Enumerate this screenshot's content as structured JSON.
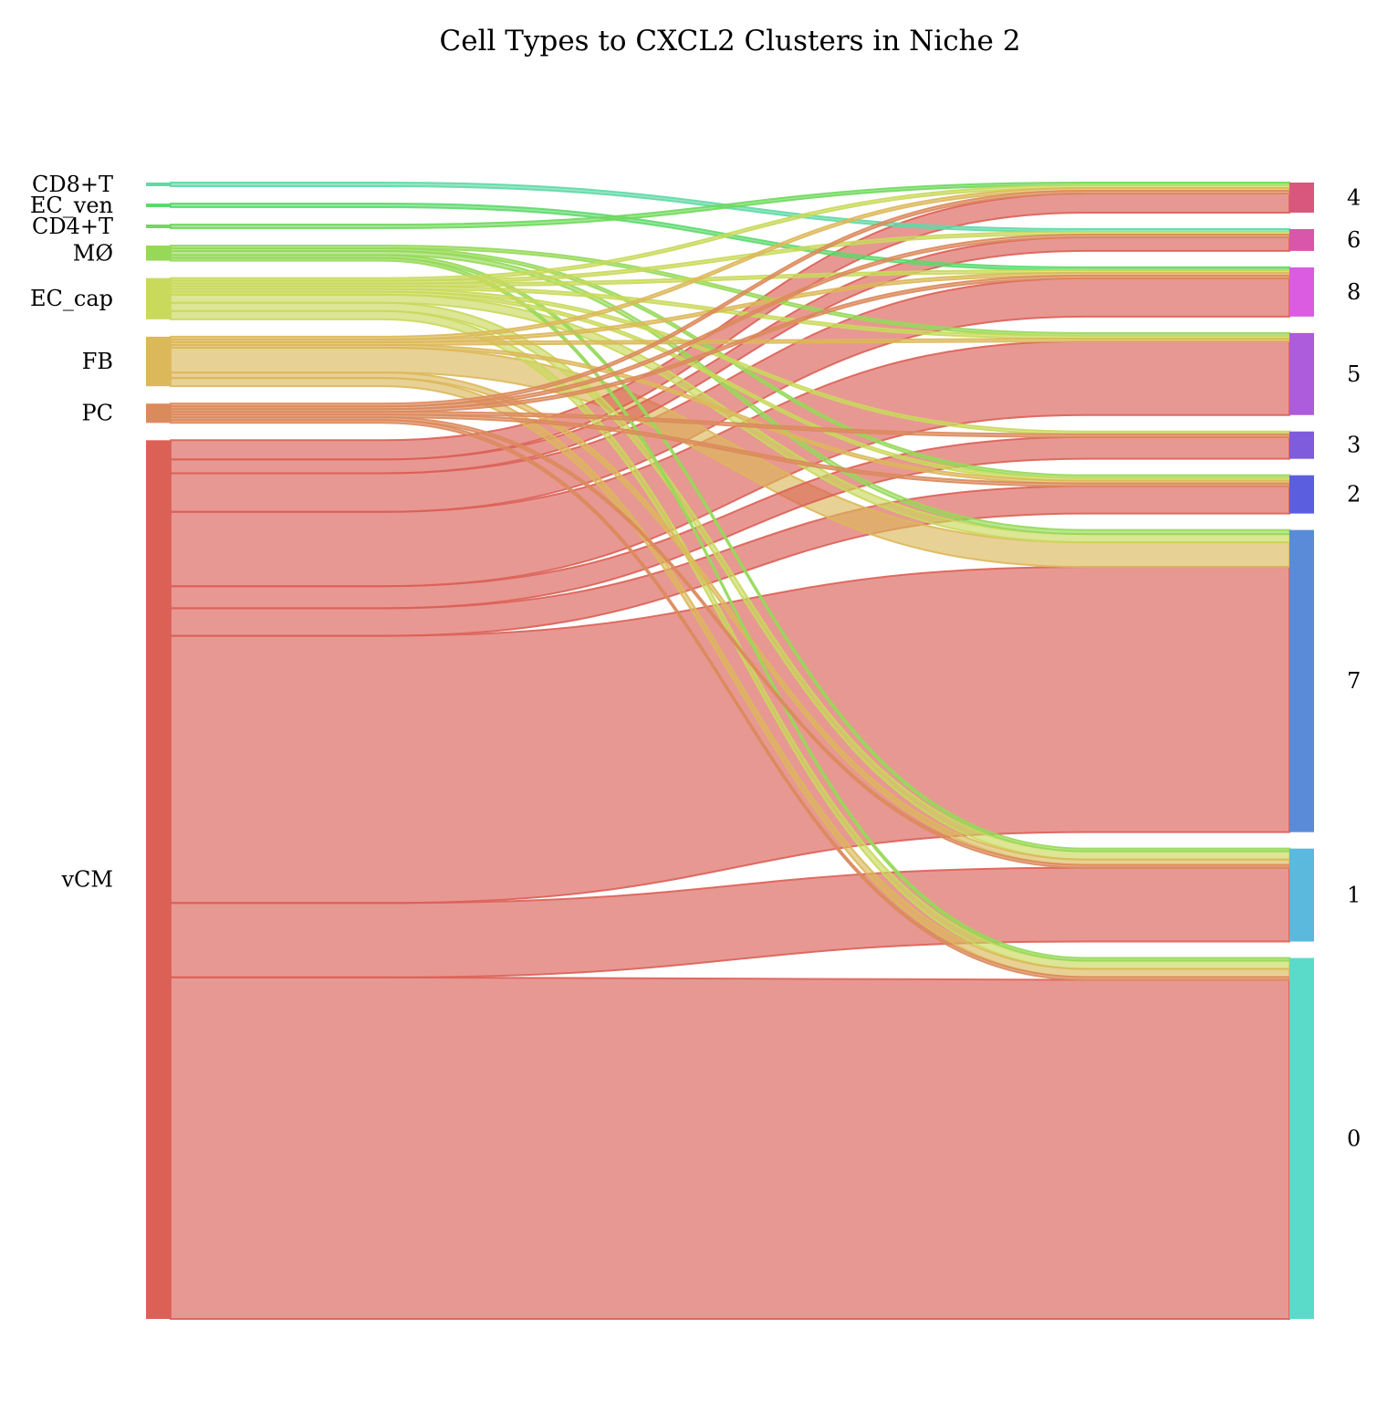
{
  "chart_data": {
    "type": "sankey",
    "title": "Cell Types to CXCL2 Clusters in Niche 2",
    "sources": [
      {
        "name": "CD8+T",
        "color": "#5fd9a6"
      },
      {
        "name": "EC_ven",
        "color": "#5cd96c"
      },
      {
        "name": "CD4+T",
        "color": "#6fd95c"
      },
      {
        "name": "MØ",
        "color": "#96d959"
      },
      {
        "name": "EC_cap",
        "color": "#c9d95c"
      },
      {
        "name": "FB",
        "color": "#dbb85a"
      },
      {
        "name": "PC",
        "color": "#db8a5c"
      },
      {
        "name": "vCM",
        "color": "#db6157"
      }
    ],
    "targets": [
      {
        "name": "4",
        "color": "#d9577c"
      },
      {
        "name": "6",
        "color": "#d957aa"
      },
      {
        "name": "8",
        "color": "#db5ce0"
      },
      {
        "name": "5",
        "color": "#ad5cdb"
      },
      {
        "name": "3",
        "color": "#7f5cdb"
      },
      {
        "name": "2",
        "color": "#5c5ee0"
      },
      {
        "name": "7",
        "color": "#5a8bd9"
      },
      {
        "name": "1",
        "color": "#5ab9dc"
      },
      {
        "name": "0",
        "color": "#5adbc9"
      }
    ],
    "links": [
      {
        "source": "CD8+T",
        "target": "6",
        "value": 1
      },
      {
        "source": "EC_ven",
        "target": "8",
        "value": 1
      },
      {
        "source": "CD4+T",
        "target": "4",
        "value": 1
      },
      {
        "source": "MØ",
        "target": "5",
        "value": 1
      },
      {
        "source": "MØ",
        "target": "2",
        "value": 1
      },
      {
        "source": "MØ",
        "target": "7",
        "value": 1.5
      },
      {
        "source": "MØ",
        "target": "1",
        "value": 1
      },
      {
        "source": "MØ",
        "target": "0",
        "value": 1
      },
      {
        "source": "EC_cap",
        "target": "4",
        "value": 1
      },
      {
        "source": "EC_cap",
        "target": "6",
        "value": 1
      },
      {
        "source": "EC_cap",
        "target": "8",
        "value": 1
      },
      {
        "source": "EC_cap",
        "target": "5",
        "value": 1
      },
      {
        "source": "EC_cap",
        "target": "3",
        "value": 1
      },
      {
        "source": "EC_cap",
        "target": "2",
        "value": 1
      },
      {
        "source": "EC_cap",
        "target": "7",
        "value": 3
      },
      {
        "source": "EC_cap",
        "target": "1",
        "value": 3
      },
      {
        "source": "EC_cap",
        "target": "0",
        "value": 3
      },
      {
        "source": "FB",
        "target": "4",
        "value": 1
      },
      {
        "source": "FB",
        "target": "8",
        "value": 1
      },
      {
        "source": "FB",
        "target": "5",
        "value": 1
      },
      {
        "source": "FB",
        "target": "2",
        "value": 1
      },
      {
        "source": "FB",
        "target": "7",
        "value": 9
      },
      {
        "source": "FB",
        "target": "1",
        "value": 2
      },
      {
        "source": "FB",
        "target": "0",
        "value": 3
      },
      {
        "source": "PC",
        "target": "4",
        "value": 1
      },
      {
        "source": "PC",
        "target": "6",
        "value": 1
      },
      {
        "source": "PC",
        "target": "8",
        "value": 1
      },
      {
        "source": "PC",
        "target": "3",
        "value": 1
      },
      {
        "source": "PC",
        "target": "2",
        "value": 1
      },
      {
        "source": "PC",
        "target": "1",
        "value": 1
      },
      {
        "source": "PC",
        "target": "0",
        "value": 1
      },
      {
        "source": "vCM",
        "target": "4",
        "value": 7
      },
      {
        "source": "vCM",
        "target": "6",
        "value": 5
      },
      {
        "source": "vCM",
        "target": "8",
        "value": 14
      },
      {
        "source": "vCM",
        "target": "5",
        "value": 27
      },
      {
        "source": "vCM",
        "target": "3",
        "value": 8
      },
      {
        "source": "vCM",
        "target": "2",
        "value": 10
      },
      {
        "source": "vCM",
        "target": "7",
        "value": 97
      },
      {
        "source": "vCM",
        "target": "1",
        "value": 27
      },
      {
        "source": "vCM",
        "target": "0",
        "value": 124
      }
    ]
  }
}
